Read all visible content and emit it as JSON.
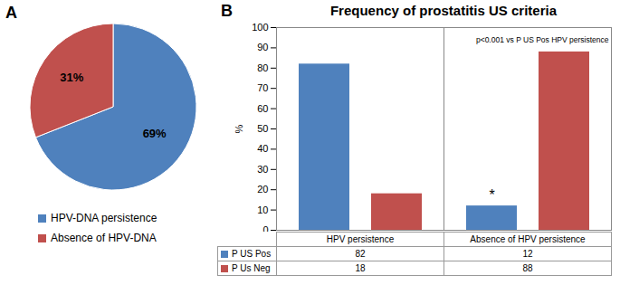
{
  "chart_data": [
    {
      "type": "pie",
      "annotations": [
        {
          "text": "A"
        }
      ],
      "categories": [
        "HPV-DNA persistence",
        "Absence of HPV-DNA"
      ],
      "values": [
        69,
        31
      ],
      "value_labels": [
        "69%",
        "31%"
      ],
      "colors": [
        "#4f81bd",
        "#c0504d"
      ],
      "data_labels": true,
      "legend": "bottom"
    },
    {
      "type": "bar",
      "title": "Frequency of prostatitis US criteria",
      "annotations": [
        {
          "text": "B"
        },
        {
          "text": "p<0.001 vs P US Pos HPV persistence"
        },
        {
          "text": "*",
          "category": "Absence of HPV persistence",
          "series": "P US Pos"
        }
      ],
      "y_label": "%",
      "categories": [
        "HPV persistence",
        "Absence of HPV persistence"
      ],
      "series": [
        {
          "name": "P US Pos",
          "color": "#4f81bd",
          "values": [
            82,
            12
          ]
        },
        {
          "name": "P Us Neg",
          "color": "#c0504d",
          "values": [
            18,
            88
          ]
        }
      ],
      "ylim": [
        0,
        100
      ],
      "yticks": [
        0,
        10,
        20,
        30,
        40,
        50,
        60,
        70,
        80,
        90,
        100
      ],
      "grid": false,
      "legend": "bottom"
    }
  ]
}
